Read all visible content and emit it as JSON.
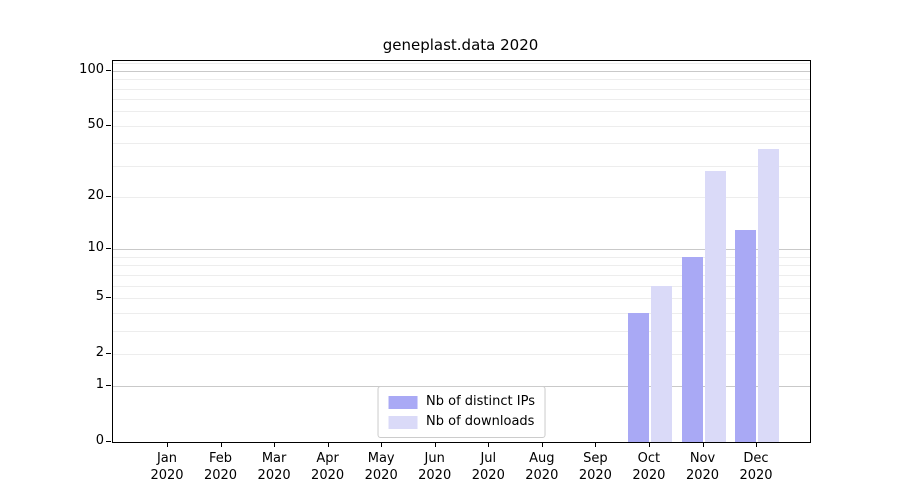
{
  "chart_data": {
    "type": "bar",
    "title": "geneplast.data 2020",
    "categories": [
      "Jan 2020",
      "Feb 2020",
      "Mar 2020",
      "Apr 2020",
      "May 2020",
      "Jun 2020",
      "Jul 2020",
      "Aug 2020",
      "Sep 2020",
      "Oct 2020",
      "Nov 2020",
      "Dec 2020"
    ],
    "series": [
      {
        "name": "Nb of distinct IPs",
        "color": "#a9a9f5",
        "values": [
          0,
          0,
          0,
          0,
          0,
          0,
          0,
          0,
          0,
          4,
          9,
          13
        ]
      },
      {
        "name": "Nb of downloads",
        "color": "#dadaf8",
        "values": [
          0,
          0,
          0,
          0,
          0,
          0,
          0,
          0,
          0,
          6,
          28,
          37
        ]
      }
    ],
    "xlabel": "",
    "ylabel": "",
    "y_scale": "log1p",
    "y_ticks": [
      0,
      1,
      2,
      5,
      10,
      20,
      50,
      100
    ],
    "y_major_gridlines": [
      1,
      10,
      100
    ],
    "y_minor_gridlines": [
      2,
      3,
      4,
      5,
      6,
      7,
      8,
      9,
      20,
      30,
      40,
      50,
      60,
      70,
      80,
      90,
      110
    ],
    "ylim": [
      0,
      113
    ],
    "legend_position": "lower center",
    "grid": "horizontal",
    "colors": {
      "axis": "#000000",
      "major_grid": "#c9c9c9",
      "minor_grid": "#ededed",
      "background": "#ffffff"
    }
  }
}
